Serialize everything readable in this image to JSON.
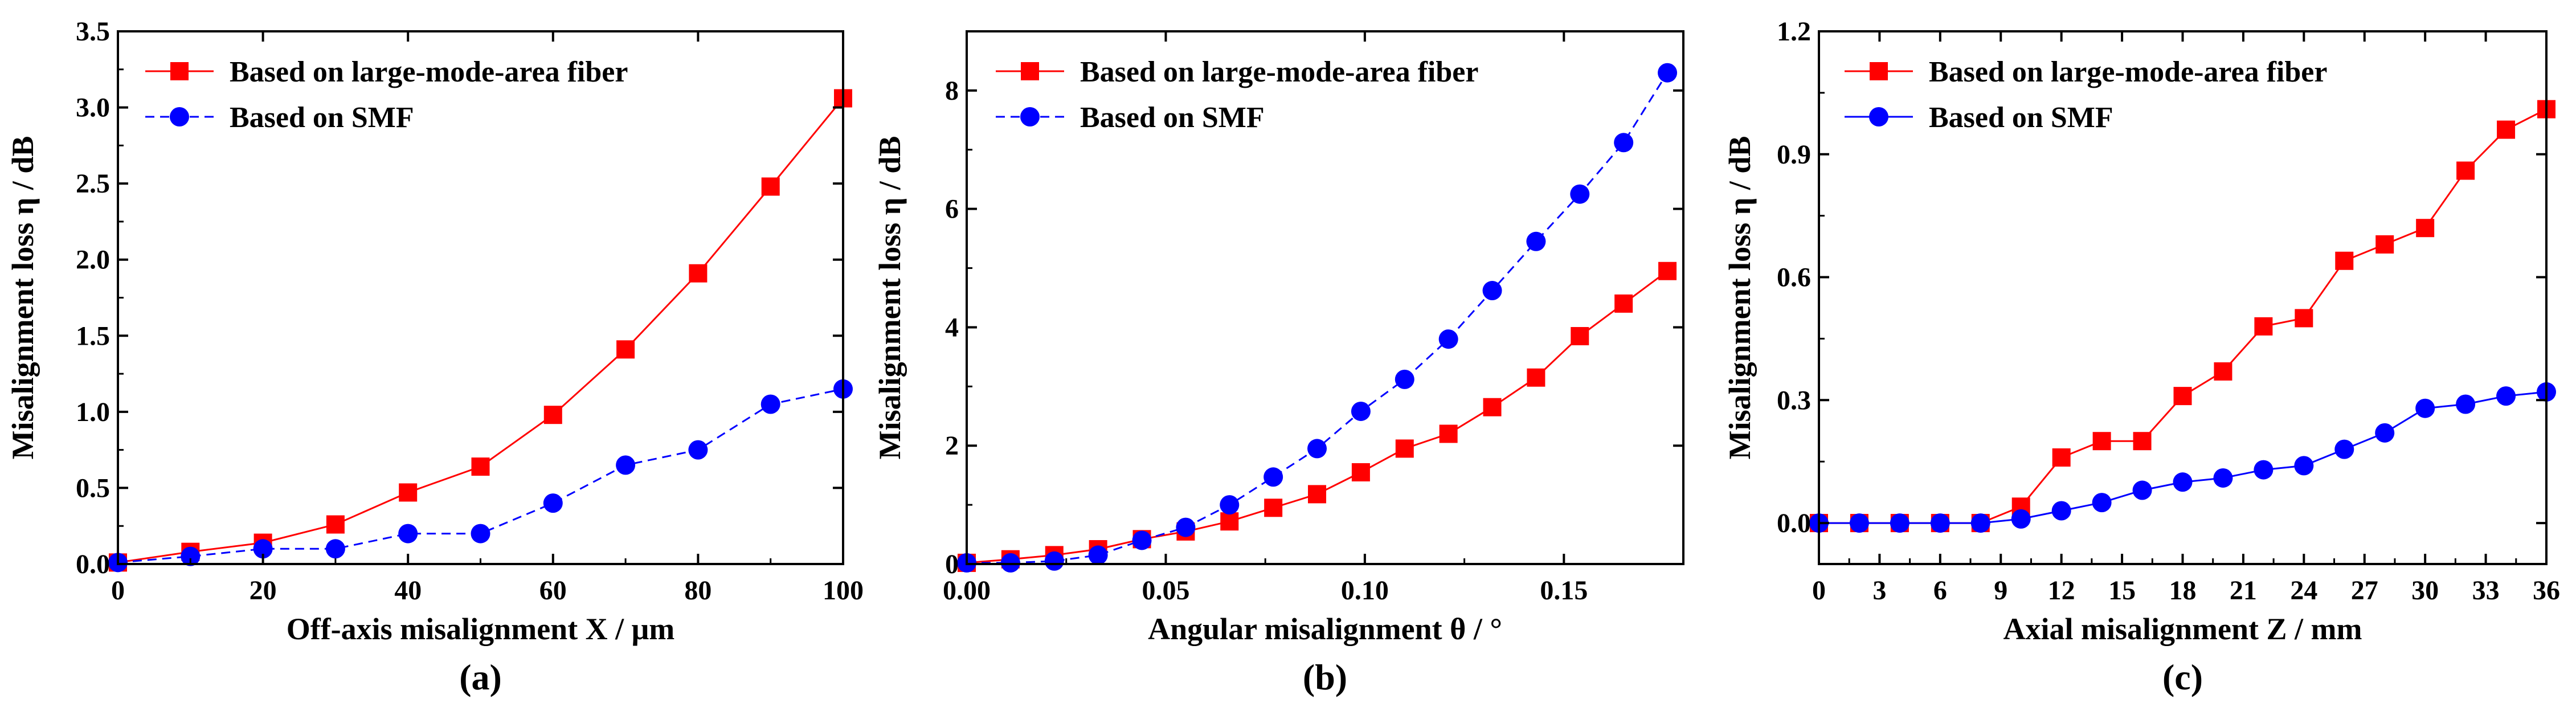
{
  "chart_data": [
    {
      "type": "line",
      "panel_label": "(a)",
      "xlabel": "Off-axis misalignment X / μm",
      "ylabel": "Misalignment loss η / dB",
      "xlim": [
        0,
        100
      ],
      "ylim": [
        0,
        3.5
      ],
      "xticks": [
        0,
        20,
        40,
        60,
        80,
        100
      ],
      "xtick_labels": [
        "0",
        "20",
        "40",
        "60",
        "80",
        "100"
      ],
      "yticks": [
        0,
        0.5,
        1.0,
        1.5,
        2.0,
        2.5,
        3.0,
        3.5
      ],
      "ytick_labels": [
        "0.0",
        "0.5",
        "1.0",
        "1.5",
        "2.0",
        "2.5",
        "3.0",
        "3.5"
      ],
      "grid": false,
      "legend_position": "top-left",
      "series": [
        {
          "name": "Based on large-mode-area fiber",
          "color": "#ff0000",
          "marker": "square",
          "line_style": "solid",
          "x": [
            0,
            10,
            20,
            30,
            40,
            50,
            60,
            70,
            80,
            90,
            100
          ],
          "y": [
            0.01,
            0.08,
            0.14,
            0.26,
            0.47,
            0.64,
            0.98,
            1.41,
            1.91,
            2.48,
            3.06
          ]
        },
        {
          "name": "Based on SMF",
          "color": "#0000ff",
          "marker": "circle",
          "line_style": "dashed",
          "x": [
            0,
            10,
            20,
            30,
            40,
            50,
            60,
            70,
            80,
            90,
            100
          ],
          "y": [
            0.01,
            0.05,
            0.1,
            0.1,
            0.2,
            0.2,
            0.4,
            0.65,
            0.75,
            1.05,
            1.15
          ]
        }
      ]
    },
    {
      "type": "line",
      "panel_label": "(b)",
      "xlabel": "Angular misalignment θ / °",
      "ylabel": "Misalignment loss η / dB",
      "xlim": [
        0,
        0.18
      ],
      "ylim": [
        0,
        9
      ],
      "xticks": [
        0,
        0.05,
        0.1,
        0.15
      ],
      "xtick_labels": [
        "0.00",
        "0.05",
        "0.10",
        "0.15"
      ],
      "yticks": [
        0,
        2,
        4,
        6,
        8
      ],
      "ytick_labels": [
        "0",
        "2",
        "4",
        "6",
        "8"
      ],
      "grid": false,
      "legend_position": "top-left",
      "series": [
        {
          "name": "Based on large-mode-area fiber",
          "color": "#ff0000",
          "marker": "square",
          "line_style": "solid",
          "x": [
            0,
            0.011,
            0.022,
            0.033,
            0.044,
            0.055,
            0.066,
            0.077,
            0.088,
            0.099,
            0.11,
            0.121,
            0.132,
            0.143,
            0.154,
            0.165,
            0.176
          ],
          "y": [
            0.02,
            0.08,
            0.15,
            0.25,
            0.42,
            0.55,
            0.72,
            0.95,
            1.18,
            1.55,
            1.95,
            2.2,
            2.65,
            3.15,
            3.85,
            4.4,
            4.95
          ]
        },
        {
          "name": "Based on SMF",
          "color": "#0000ff",
          "marker": "circle",
          "line_style": "dashed",
          "x": [
            0,
            0.011,
            0.022,
            0.033,
            0.044,
            0.055,
            0.066,
            0.077,
            0.088,
            0.099,
            0.11,
            0.121,
            0.132,
            0.143,
            0.154,
            0.165,
            0.176
          ],
          "y": [
            0.02,
            0.02,
            0.05,
            0.15,
            0.4,
            0.62,
            1.0,
            1.47,
            1.95,
            2.58,
            3.12,
            3.8,
            4.62,
            5.45,
            6.25,
            7.12,
            8.3
          ]
        }
      ]
    },
    {
      "type": "line",
      "panel_label": "(c)",
      "xlabel": "Axial misalignment Z / mm",
      "ylabel": "Misalignment loss η / dB",
      "xlim": [
        0,
        36
      ],
      "ylim": [
        -0.1,
        1.2
      ],
      "xticks": [
        0,
        3,
        6,
        9,
        12,
        15,
        18,
        21,
        24,
        27,
        30,
        33,
        36
      ],
      "xtick_labels": [
        "0",
        "3",
        "6",
        "9",
        "12",
        "15",
        "18",
        "21",
        "24",
        "27",
        "30",
        "33",
        "36"
      ],
      "yticks": [
        0,
        0.3,
        0.6,
        0.9,
        1.2
      ],
      "ytick_labels": [
        "0.0",
        "0.3",
        "0.6",
        "0.9",
        "1.2"
      ],
      "grid": false,
      "legend_position": "top-left",
      "series": [
        {
          "name": "Based on large-mode-area fiber",
          "color": "#ff0000",
          "marker": "square",
          "line_style": "solid",
          "x": [
            0,
            2,
            4,
            6,
            8,
            10,
            12,
            14,
            16,
            18,
            20,
            22,
            24,
            26,
            28,
            30,
            32,
            34,
            36
          ],
          "y": [
            0,
            0,
            0,
            0,
            0,
            0.04,
            0.16,
            0.2,
            0.2,
            0.31,
            0.37,
            0.48,
            0.5,
            0.64,
            0.68,
            0.72,
            0.86,
            0.96,
            1.01
          ]
        },
        {
          "name": "Based on SMF",
          "color": "#0000ff",
          "marker": "circle",
          "line_style": "solid",
          "x": [
            0,
            2,
            4,
            6,
            8,
            10,
            12,
            14,
            16,
            18,
            20,
            22,
            24,
            26,
            28,
            30,
            32,
            34,
            36
          ],
          "y": [
            0,
            0,
            0,
            0,
            0,
            0.01,
            0.03,
            0.05,
            0.08,
            0.1,
            0.11,
            0.13,
            0.14,
            0.18,
            0.22,
            0.28,
            0.29,
            0.31,
            0.32
          ]
        }
      ]
    }
  ]
}
